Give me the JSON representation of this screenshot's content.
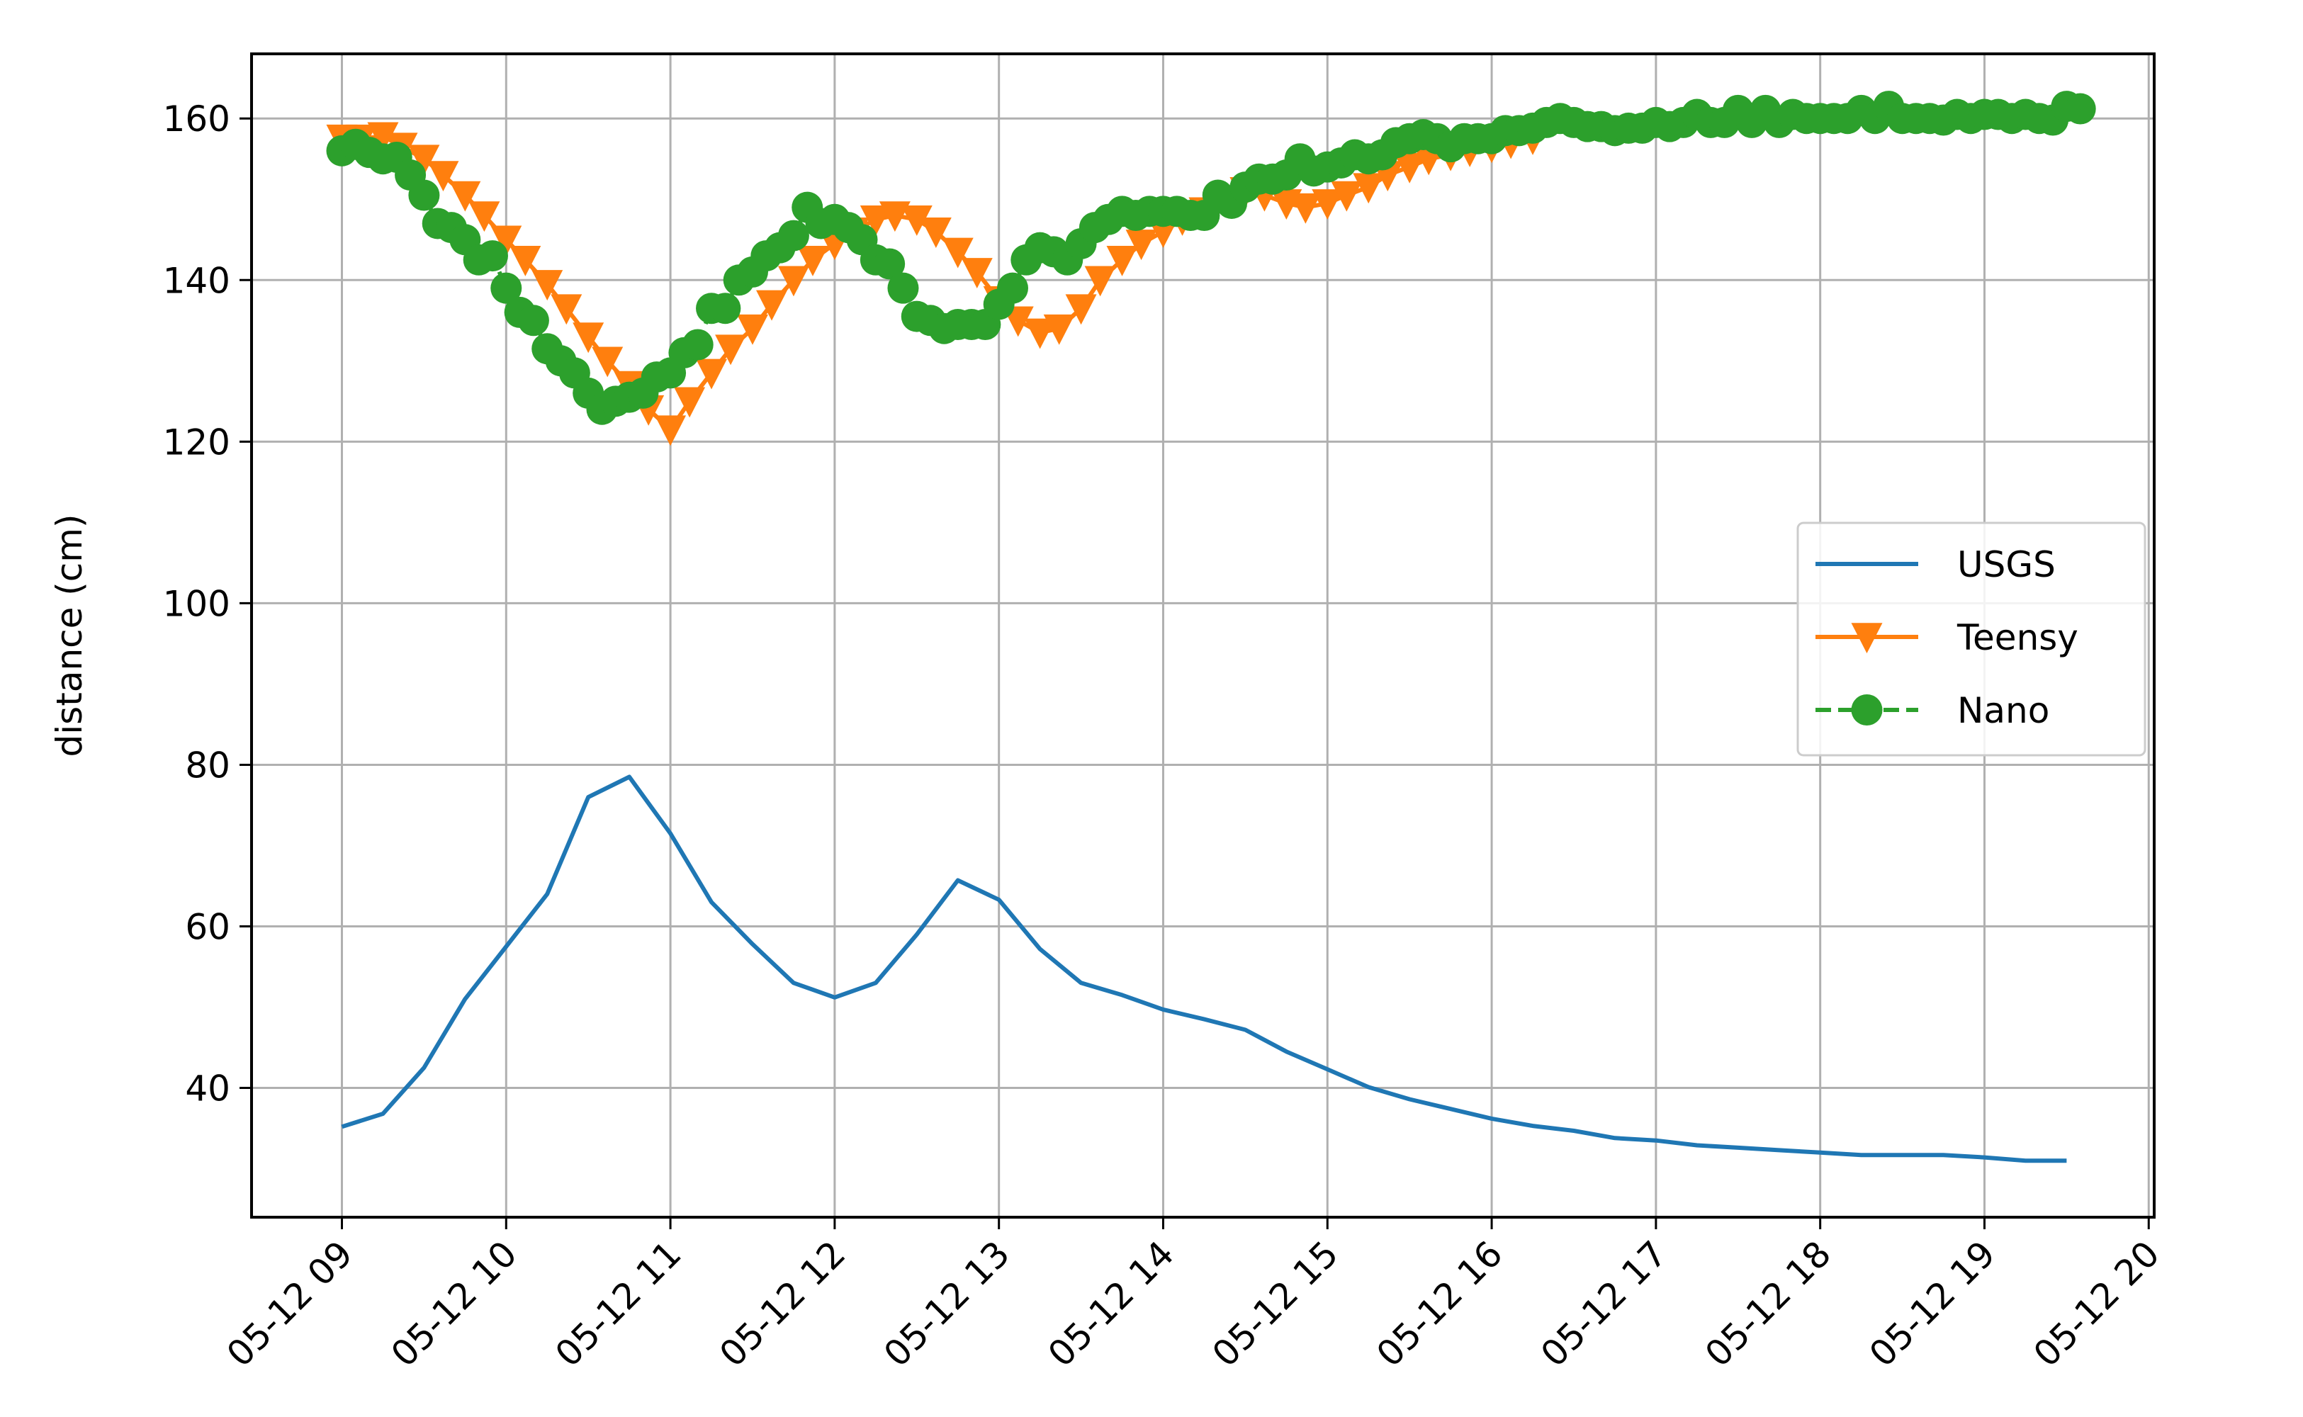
{
  "chart_data": {
    "type": "line",
    "title": "",
    "xlabel": "",
    "ylabel": "distance (cm)",
    "x_ticks": [
      "05-12 09",
      "05-12 10",
      "05-12 11",
      "05-12 12",
      "05-12 13",
      "05-12 14",
      "05-12 15",
      "05-12 16",
      "05-12 17",
      "05-12 18",
      "05-12 19",
      "05-12 20"
    ],
    "y_ticks": [
      40,
      60,
      80,
      100,
      120,
      140,
      160
    ],
    "xlim": [
      "05-12 08:27",
      "05-12 20:02"
    ],
    "ylim": [
      24,
      168
    ],
    "grid": true,
    "legend_position": "center-right",
    "series": [
      {
        "name": "USGS",
        "color": "#1f77b4",
        "linestyle": "solid",
        "marker": "none",
        "points": [
          [
            "05-12 09:00",
            35.2
          ],
          [
            "05-12 09:15",
            36.8
          ],
          [
            "05-12 09:30",
            42.5
          ],
          [
            "05-12 09:45",
            51
          ],
          [
            "05-12 10:00",
            57.5
          ],
          [
            "05-12 10:15",
            64
          ],
          [
            "05-12 10:30",
            76
          ],
          [
            "05-12 10:45",
            78.5
          ],
          [
            "05-12 11:00",
            71.5
          ],
          [
            "05-12 11:15",
            63
          ],
          [
            "05-12 11:30",
            57.8
          ],
          [
            "05-12 11:45",
            53
          ],
          [
            "05-12 12:00",
            51.2
          ],
          [
            "05-12 12:15",
            53
          ],
          [
            "05-12 12:30",
            59
          ],
          [
            "05-12 12:45",
            65.7
          ],
          [
            "05-12 13:00",
            63.3
          ],
          [
            "05-12 13:15",
            57.2
          ],
          [
            "05-12 13:30",
            53
          ],
          [
            "05-12 13:45",
            51.5
          ],
          [
            "05-12 14:00",
            49.7
          ],
          [
            "05-12 14:15",
            48.5
          ],
          [
            "05-12 14:30",
            47.2
          ],
          [
            "05-12 14:45",
            44.5
          ],
          [
            "05-12 15:00",
            42.3
          ],
          [
            "05-12 15:15",
            40.1
          ],
          [
            "05-12 15:30",
            38.6
          ],
          [
            "05-12 15:45",
            37.4
          ],
          [
            "05-12 16:00",
            36.2
          ],
          [
            "05-12 16:15",
            35.3
          ],
          [
            "05-12 16:30",
            34.7
          ],
          [
            "05-12 16:45",
            33.8
          ],
          [
            "05-12 17:00",
            33.5
          ],
          [
            "05-12 17:15",
            32.9
          ],
          [
            "05-12 17:30",
            32.6
          ],
          [
            "05-12 17:45",
            32.3
          ],
          [
            "05-12 18:00",
            32
          ],
          [
            "05-12 18:15",
            31.7
          ],
          [
            "05-12 18:30",
            31.7
          ],
          [
            "05-12 18:45",
            31.7
          ],
          [
            "05-12 19:00",
            31.4
          ],
          [
            "05-12 19:15",
            31
          ],
          [
            "05-12 19:30",
            31
          ]
        ]
      },
      {
        "name": "Teensy",
        "color": "#ff7f0e",
        "linestyle": "solid",
        "marker": "triangle-down",
        "points": [
          [
            "05-12 09:00",
            157.5
          ],
          [
            "05-12 09:07",
            157.5
          ],
          [
            "05-12 09:15",
            157.8
          ],
          [
            "05-12 09:22",
            156.5
          ],
          [
            "05-12 09:30",
            155
          ],
          [
            "05-12 09:37",
            153
          ],
          [
            "05-12 09:45",
            150.5
          ],
          [
            "05-12 09:52",
            148
          ],
          [
            "05-12 10:00",
            145
          ],
          [
            "05-12 10:07",
            142.5
          ],
          [
            "05-12 10:15",
            139.5
          ],
          [
            "05-12 10:22",
            136.5
          ],
          [
            "05-12 10:30",
            133
          ],
          [
            "05-12 10:37",
            130
          ],
          [
            "05-12 10:45",
            127
          ],
          [
            "05-12 10:52",
            124
          ],
          [
            "05-12 11:00",
            121.5
          ],
          [
            "05-12 11:07",
            125
          ],
          [
            "05-12 11:15",
            128.5
          ],
          [
            "05-12 11:22",
            131.5
          ],
          [
            "05-12 11:30",
            134
          ],
          [
            "05-12 11:37",
            137
          ],
          [
            "05-12 11:45",
            140
          ],
          [
            "05-12 11:52",
            142.5
          ],
          [
            "05-12 12:00",
            144.5
          ],
          [
            "05-12 12:07",
            146
          ],
          [
            "05-12 12:15",
            147.5
          ],
          [
            "05-12 12:22",
            148
          ],
          [
            "05-12 12:30",
            147.5
          ],
          [
            "05-12 12:37",
            146
          ],
          [
            "05-12 12:45",
            143.5
          ],
          [
            "05-12 12:52",
            141
          ],
          [
            "05-12 13:00",
            137.5
          ],
          [
            "05-12 13:07",
            135
          ],
          [
            "05-12 13:15",
            133.5
          ],
          [
            "05-12 13:22",
            134
          ],
          [
            "05-12 13:30",
            136.5
          ],
          [
            "05-12 13:37",
            140
          ],
          [
            "05-12 13:45",
            142.5
          ],
          [
            "05-12 13:52",
            144.5
          ],
          [
            "05-12 14:00",
            146
          ],
          [
            "05-12 14:07",
            147.5
          ],
          [
            "05-12 14:15",
            148.5
          ],
          [
            "05-12 14:22",
            150
          ],
          [
            "05-12 14:30",
            151
          ],
          [
            "05-12 14:37",
            150.5
          ],
          [
            "05-12 14:45",
            149.5
          ],
          [
            "05-12 14:52",
            149
          ],
          [
            "05-12 15:00",
            149.5
          ],
          [
            "05-12 15:07",
            150.5
          ],
          [
            "05-12 15:15",
            151.5
          ],
          [
            "05-12 15:22",
            153
          ],
          [
            "05-12 15:30",
            154
          ],
          [
            "05-12 15:37",
            155
          ],
          [
            "05-12 15:45",
            155.5
          ],
          [
            "05-12 15:52",
            156
          ],
          [
            "05-12 16:00",
            156.5
          ],
          [
            "05-12 16:07",
            157
          ],
          [
            "05-12 16:15",
            157.5
          ]
        ]
      },
      {
        "name": "Nano",
        "color": "#2ca02c",
        "linestyle": "dashed",
        "marker": "circle",
        "points": [
          [
            "05-12 09:00",
            156
          ],
          [
            "05-12 09:05",
            156.8
          ],
          [
            "05-12 09:10",
            155.8
          ],
          [
            "05-12 09:15",
            155
          ],
          [
            "05-12 09:20",
            155.2
          ],
          [
            "05-12 09:25",
            153
          ],
          [
            "05-12 09:30",
            150.5
          ],
          [
            "05-12 09:35",
            147
          ],
          [
            "05-12 09:40",
            146.5
          ],
          [
            "05-12 09:45",
            145
          ],
          [
            "05-12 09:50",
            142.5
          ],
          [
            "05-12 09:55",
            143
          ],
          [
            "05-12 10:00",
            139
          ],
          [
            "05-12 10:05",
            136
          ],
          [
            "05-12 10:10",
            135
          ],
          [
            "05-12 10:15",
            131.5
          ],
          [
            "05-12 10:20",
            130
          ],
          [
            "05-12 10:25",
            128.5
          ],
          [
            "05-12 10:30",
            126
          ],
          [
            "05-12 10:35",
            124
          ],
          [
            "05-12 10:40",
            125
          ],
          [
            "05-12 10:45",
            125.5
          ],
          [
            "05-12 10:50",
            126
          ],
          [
            "05-12 10:55",
            128
          ],
          [
            "05-12 11:00",
            128.5
          ],
          [
            "05-12 11:05",
            131
          ],
          [
            "05-12 11:10",
            132
          ],
          [
            "05-12 11:15",
            136.5
          ],
          [
            "05-12 11:20",
            136.5
          ],
          [
            "05-12 11:25",
            140
          ],
          [
            "05-12 11:30",
            141
          ],
          [
            "05-12 11:35",
            143
          ],
          [
            "05-12 11:40",
            144
          ],
          [
            "05-12 11:45",
            145.5
          ],
          [
            "05-12 11:50",
            149
          ],
          [
            "05-12 11:55",
            147
          ],
          [
            "05-12 12:00",
            147.5
          ],
          [
            "05-12 12:05",
            146.5
          ],
          [
            "05-12 12:10",
            145
          ],
          [
            "05-12 12:15",
            142.5
          ],
          [
            "05-12 12:20",
            142
          ],
          [
            "05-12 12:25",
            139
          ],
          [
            "05-12 12:30",
            135.5
          ],
          [
            "05-12 12:35",
            135
          ],
          [
            "05-12 12:40",
            134
          ],
          [
            "05-12 12:45",
            134.5
          ],
          [
            "05-12 12:50",
            134.5
          ],
          [
            "05-12 12:55",
            134.5
          ],
          [
            "05-12 13:00",
            137
          ],
          [
            "05-12 13:05",
            139
          ],
          [
            "05-12 13:10",
            142.5
          ],
          [
            "05-12 13:15",
            144
          ],
          [
            "05-12 13:20",
            143.5
          ],
          [
            "05-12 13:25",
            142.5
          ],
          [
            "05-12 13:30",
            144.5
          ],
          [
            "05-12 13:35",
            146.5
          ],
          [
            "05-12 13:40",
            147.5
          ],
          [
            "05-12 13:45",
            148.5
          ],
          [
            "05-12 13:50",
            148
          ],
          [
            "05-12 13:55",
            148.5
          ],
          [
            "05-12 14:00",
            148.5
          ],
          [
            "05-12 14:05",
            148.5
          ],
          [
            "05-12 14:10",
            148
          ],
          [
            "05-12 14:15",
            148
          ],
          [
            "05-12 14:20",
            150.5
          ],
          [
            "05-12 14:25",
            149.5
          ],
          [
            "05-12 14:30",
            151.5
          ],
          [
            "05-12 14:35",
            152.5
          ],
          [
            "05-12 14:40",
            152.5
          ],
          [
            "05-12 14:45",
            153
          ],
          [
            "05-12 14:50",
            155
          ],
          [
            "05-12 14:55",
            153.5
          ],
          [
            "05-12 15:00",
            154
          ],
          [
            "05-12 15:05",
            154.5
          ],
          [
            "05-12 15:10",
            155.5
          ],
          [
            "05-12 15:15",
            155
          ],
          [
            "05-12 15:20",
            155.5
          ],
          [
            "05-12 15:25",
            157
          ],
          [
            "05-12 15:30",
            157.5
          ],
          [
            "05-12 15:35",
            158
          ],
          [
            "05-12 15:40",
            157.5
          ],
          [
            "05-12 15:45",
            156.5
          ],
          [
            "05-12 15:50",
            157.5
          ],
          [
            "05-12 15:55",
            157.5
          ],
          [
            "05-12 16:00",
            157.5
          ],
          [
            "05-12 16:05",
            158.5
          ],
          [
            "05-12 16:10",
            158.5
          ],
          [
            "05-12 16:15",
            158.8
          ],
          [
            "05-12 16:20",
            159.5
          ],
          [
            "05-12 16:25",
            160
          ],
          [
            "05-12 16:30",
            159.5
          ],
          [
            "05-12 16:35",
            159
          ],
          [
            "05-12 16:40",
            159
          ],
          [
            "05-12 16:45",
            158.5
          ],
          [
            "05-12 16:50",
            158.8
          ],
          [
            "05-12 16:55",
            158.8
          ],
          [
            "05-12 17:00",
            159.5
          ],
          [
            "05-12 17:05",
            159
          ],
          [
            "05-12 17:10",
            159.5
          ],
          [
            "05-12 17:15",
            160.5
          ],
          [
            "05-12 17:20",
            159.5
          ],
          [
            "05-12 17:25",
            159.5
          ],
          [
            "05-12 17:30",
            161
          ],
          [
            "05-12 17:35",
            159.5
          ],
          [
            "05-12 17:40",
            161
          ],
          [
            "05-12 17:45",
            159.5
          ],
          [
            "05-12 17:50",
            160.5
          ],
          [
            "05-12 17:55",
            160
          ],
          [
            "05-12 18:00",
            160
          ],
          [
            "05-12 18:05",
            160
          ],
          [
            "05-12 18:10",
            160
          ],
          [
            "05-12 18:15",
            161
          ],
          [
            "05-12 18:20",
            160
          ],
          [
            "05-12 18:25",
            161.5
          ],
          [
            "05-12 18:30",
            160
          ],
          [
            "05-12 18:35",
            160
          ],
          [
            "05-12 18:40",
            160
          ],
          [
            "05-12 18:45",
            159.8
          ],
          [
            "05-12 18:50",
            160.5
          ],
          [
            "05-12 18:55",
            160
          ],
          [
            "05-12 19:00",
            160.5
          ],
          [
            "05-12 19:05",
            160.5
          ],
          [
            "05-12 19:10",
            160
          ],
          [
            "05-12 19:15",
            160.5
          ],
          [
            "05-12 19:20",
            160
          ],
          [
            "05-12 19:25",
            159.8
          ],
          [
            "05-12 19:30",
            161.5
          ],
          [
            "05-12 19:35",
            161.2
          ]
        ]
      }
    ]
  }
}
